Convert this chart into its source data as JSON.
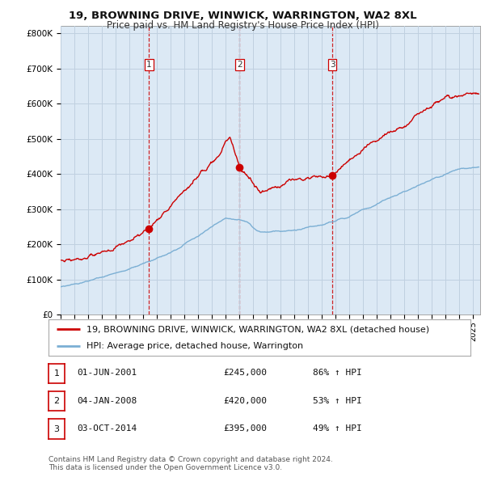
{
  "title": "19, BROWNING DRIVE, WINWICK, WARRINGTON, WA2 8XL",
  "subtitle": "Price paid vs. HM Land Registry's House Price Index (HPI)",
  "ylim": [
    0,
    820000
  ],
  "yticks": [
    0,
    100000,
    200000,
    300000,
    400000,
    500000,
    600000,
    700000,
    800000
  ],
  "ytick_labels": [
    "£0",
    "£100K",
    "£200K",
    "£300K",
    "£400K",
    "£500K",
    "£600K",
    "£700K",
    "£800K"
  ],
  "xlim_start": 1995.0,
  "xlim_end": 2025.5,
  "sale_dates": [
    2001.42,
    2008.01,
    2014.75
  ],
  "sale_prices": [
    245000,
    420000,
    395000
  ],
  "sale_labels": [
    "1",
    "2",
    "3"
  ],
  "sale_color": "#cc0000",
  "hpi_color": "#7bafd4",
  "chart_bg": "#dce9f5",
  "background_color": "#ffffff",
  "grid_color": "#c0d0e0",
  "legend_label_red": "19, BROWNING DRIVE, WINWICK, WARRINGTON, WA2 8XL (detached house)",
  "legend_label_blue": "HPI: Average price, detached house, Warrington",
  "table_entries": [
    {
      "num": "1",
      "date": "01-JUN-2001",
      "price": "£245,000",
      "change": "86% ↑ HPI"
    },
    {
      "num": "2",
      "date": "04-JAN-2008",
      "price": "£420,000",
      "change": "53% ↑ HPI"
    },
    {
      "num": "3",
      "date": "03-OCT-2014",
      "price": "£395,000",
      "change": "49% ↑ HPI"
    }
  ],
  "footer": "Contains HM Land Registry data © Crown copyright and database right 2024.\nThis data is licensed under the Open Government Licence v3.0.",
  "title_fontsize": 9.5,
  "subtitle_fontsize": 8.5,
  "tick_fontsize": 7.5,
  "legend_fontsize": 8
}
